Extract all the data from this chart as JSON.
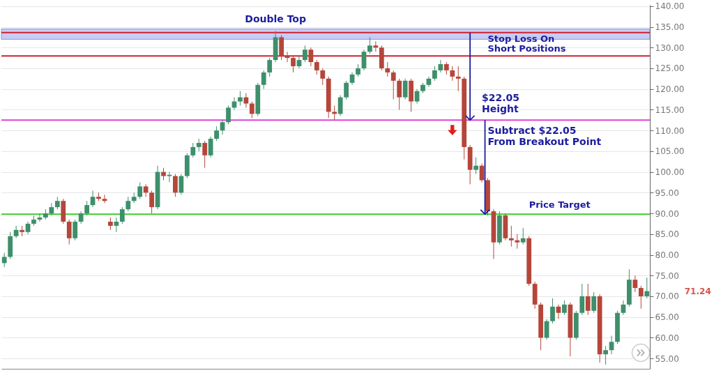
{
  "chart_data": {
    "type": "candlestick",
    "categories": [
      null,
      null,
      null,
      null,
      null,
      null,
      null,
      null,
      null,
      null,
      null,
      null,
      null,
      null,
      null,
      null,
      null,
      null,
      null,
      null,
      null,
      null,
      null,
      null,
      null,
      null,
      null,
      null,
      null,
      null,
      null,
      null,
      null,
      null,
      null,
      null,
      null,
      null,
      null,
      null,
      null,
      null,
      null,
      null,
      null,
      null,
      null,
      null,
      null,
      null,
      null,
      null,
      null,
      null,
      null,
      null,
      null,
      null,
      null,
      null,
      null,
      null,
      null,
      null,
      null,
      null,
      null,
      null,
      null,
      null,
      null,
      null,
      null,
      null,
      null,
      null,
      null,
      null,
      null,
      null,
      null,
      null,
      null,
      null,
      null,
      null,
      null,
      null,
      null,
      null,
      null,
      null,
      null,
      null,
      null,
      null,
      null,
      null,
      null,
      null,
      null,
      null,
      null,
      null,
      null,
      null,
      null,
      null,
      null,
      null
    ],
    "ohlc": [
      [
        78,
        80.5,
        77,
        79.5
      ],
      [
        79.5,
        85.5,
        79,
        84.5
      ],
      [
        84.5,
        87,
        84,
        86
      ],
      [
        86,
        87,
        84.5,
        85.5
      ],
      [
        85.5,
        88,
        85,
        87.5
      ],
      [
        87.5,
        89.5,
        87,
        88.5
      ],
      [
        88.5,
        90,
        88,
        89
      ],
      [
        89,
        91,
        88.5,
        90
      ],
      [
        90,
        92.5,
        89.5,
        91.5
      ],
      [
        91.5,
        94,
        91,
        93
      ],
      [
        93,
        93.5,
        87.5,
        88
      ],
      [
        88,
        88.5,
        82.5,
        84
      ],
      [
        84,
        88.5,
        83.5,
        88
      ],
      [
        88,
        90.5,
        87.5,
        90
      ],
      [
        90,
        93,
        89.5,
        92
      ],
      [
        92,
        95.5,
        91.5,
        94
      ],
      [
        94,
        95,
        93,
        93.5
      ],
      [
        93.5,
        94.5,
        92.5,
        93
      ],
      [
        88,
        89,
        86,
        87
      ],
      [
        87,
        89,
        85.5,
        88
      ],
      [
        88,
        91.5,
        87.5,
        91
      ],
      [
        91,
        94,
        90.5,
        93
      ],
      [
        93,
        95,
        92.5,
        94
      ],
      [
        94,
        97.5,
        93.5,
        96.5
      ],
      [
        96.5,
        97,
        94,
        95
      ],
      [
        95,
        95.5,
        90,
        91.5
      ],
      [
        91.5,
        101.5,
        91,
        100
      ],
      [
        100,
        101,
        98,
        99
      ],
      [
        99,
        100,
        97.5,
        99.3
      ],
      [
        99,
        99.5,
        94,
        95
      ],
      [
        95,
        99.5,
        94.5,
        99
      ],
      [
        99,
        104.5,
        98.5,
        104
      ],
      [
        104,
        107,
        103.5,
        106
      ],
      [
        106,
        108,
        105,
        107
      ],
      [
        107,
        107.5,
        101,
        104
      ],
      [
        104,
        108.5,
        103.5,
        108
      ],
      [
        108,
        111,
        107.5,
        110
      ],
      [
        110,
        112.5,
        109,
        112
      ],
      [
        112,
        116,
        111.5,
        115.5
      ],
      [
        115.5,
        118,
        115,
        117
      ],
      [
        117,
        119.5,
        116,
        118
      ],
      [
        118,
        119,
        115.5,
        116.5
      ],
      [
        116.5,
        117,
        113,
        114
      ],
      [
        114,
        121.5,
        113.5,
        121
      ],
      [
        121,
        124.5,
        120,
        124
      ],
      [
        124,
        127.5,
        123,
        127
      ],
      [
        127,
        134,
        126.5,
        132.5
      ],
      [
        132.5,
        133,
        127,
        128
      ],
      [
        128,
        129,
        126.5,
        127.5
      ],
      [
        127.5,
        128,
        124,
        125.5
      ],
      [
        125.5,
        128,
        125,
        127
      ],
      [
        127,
        130.5,
        126.5,
        129.5
      ],
      [
        129.5,
        130,
        125.5,
        126.5
      ],
      [
        126.5,
        127,
        123.5,
        124.5
      ],
      [
        124.5,
        125,
        121,
        122.5
      ],
      [
        122.5,
        123,
        113,
        114.5
      ],
      [
        114.5,
        116,
        112.5,
        114
      ],
      [
        114,
        118.5,
        113.5,
        118
      ],
      [
        118,
        122,
        117.5,
        121.5
      ],
      [
        121.5,
        124,
        121,
        123.5
      ],
      [
        123.5,
        126,
        123,
        125
      ],
      [
        125,
        129.5,
        124.5,
        129
      ],
      [
        129,
        132.5,
        128.5,
        130.5
      ],
      [
        130.5,
        131.5,
        129,
        130
      ],
      [
        130,
        130.5,
        124.5,
        125
      ],
      [
        125,
        126.5,
        123,
        124
      ],
      [
        124,
        124.5,
        117.5,
        122
      ],
      [
        122,
        122.5,
        115,
        118
      ],
      [
        118,
        122.5,
        117.5,
        122
      ],
      [
        122,
        122.5,
        114.5,
        117
      ],
      [
        117,
        120,
        116.5,
        119.5
      ],
      [
        119.5,
        121.5,
        119,
        121
      ],
      [
        121,
        123,
        120.5,
        122.5
      ],
      [
        122.5,
        125.5,
        122,
        124.5
      ],
      [
        124.5,
        127,
        124,
        126
      ],
      [
        126,
        126.5,
        123.5,
        124.5
      ],
      [
        124.5,
        125.5,
        122,
        123
      ],
      [
        123,
        125.5,
        119.5,
        122.5
      ],
      [
        122.5,
        123,
        103,
        106
      ],
      [
        106,
        106.5,
        97,
        100.5
      ],
      [
        100.5,
        103.5,
        99.5,
        101.5
      ],
      [
        101.5,
        102,
        97.5,
        98
      ],
      [
        98,
        98.5,
        89.5,
        90.5
      ],
      [
        90.5,
        91,
        79,
        83
      ],
      [
        83,
        90.5,
        82.5,
        89.5
      ],
      [
        89.5,
        90,
        83.5,
        84
      ],
      [
        84,
        87,
        82,
        83.5
      ],
      [
        83.5,
        85,
        81.5,
        83
      ],
      [
        83,
        86.5,
        82.5,
        84
      ],
      [
        84,
        84.5,
        72.5,
        73
      ],
      [
        73,
        73.5,
        67,
        68
      ],
      [
        68,
        68.5,
        57,
        60
      ],
      [
        60,
        64.5,
        59.5,
        64
      ],
      [
        64,
        69.5,
        63.5,
        67.5
      ],
      [
        67.5,
        68,
        64.5,
        66
      ],
      [
        66,
        69,
        65.5,
        68
      ],
      [
        68,
        68.5,
        55.5,
        60
      ],
      [
        60,
        66.5,
        59.5,
        66
      ],
      [
        66,
        73,
        65.5,
        70
      ],
      [
        70,
        73,
        65.5,
        66.5
      ],
      [
        66.5,
        71,
        66,
        70
      ],
      [
        70,
        70.5,
        54,
        56
      ],
      [
        56,
        58,
        53.5,
        57
      ],
      [
        57,
        60.5,
        56,
        59
      ],
      [
        59,
        66.5,
        58.5,
        66
      ],
      [
        66,
        69,
        65.5,
        68
      ],
      [
        68,
        76.5,
        67.5,
        74
      ],
      [
        74,
        75,
        71,
        72
      ],
      [
        72,
        72.5,
        67,
        70
      ],
      [
        70,
        74.5,
        69.5,
        71.24
      ]
    ],
    "colors": [
      "#3e8f6b",
      "#3e8f6b",
      "#3e8f6b",
      "#b5463a",
      "#3e8f6b",
      "#3e8f6b",
      "#3e8f6b",
      "#3e8f6b",
      "#3e8f6b",
      "#3e8f6b",
      "#b5463a",
      "#b5463a",
      "#3e8f6b",
      "#3e8f6b",
      "#3e8f6b",
      "#3e8f6b",
      "#b5463a",
      "#b5463a",
      "#b5463a",
      "#3e8f6b",
      "#3e8f6b",
      "#3e8f6b",
      "#3e8f6b",
      "#3e8f6b",
      "#b5463a",
      "#b5463a",
      "#3e8f6b",
      "#b5463a",
      "#3e8f6b",
      "#b5463a",
      "#3e8f6b",
      "#3e8f6b",
      "#3e8f6b",
      "#3e8f6b",
      "#b5463a",
      "#3e8f6b",
      "#3e8f6b",
      "#3e8f6b",
      "#3e8f6b",
      "#3e8f6b",
      "#3e8f6b",
      "#b5463a",
      "#b5463a",
      "#3e8f6b",
      "#3e8f6b",
      "#3e8f6b",
      "#3e8f6b",
      "#b5463a",
      "#b5463a",
      "#b5463a",
      "#3e8f6b",
      "#3e8f6b",
      "#b5463a",
      "#b5463a",
      "#b5463a",
      "#b5463a",
      "#b5463a",
      "#3e8f6b",
      "#3e8f6b",
      "#3e8f6b",
      "#3e8f6b",
      "#3e8f6b",
      "#3e8f6b",
      "#b5463a",
      "#b5463a",
      "#b5463a",
      "#b5463a",
      "#b5463a",
      "#3e8f6b",
      "#b5463a",
      "#3e8f6b",
      "#3e8f6b",
      "#3e8f6b",
      "#3e8f6b",
      "#3e8f6b",
      "#b5463a",
      "#b5463a",
      "#b5463a",
      "#b5463a",
      "#b5463a",
      "#3e8f6b",
      "#b5463a",
      "#b5463a",
      "#b5463a",
      "#3e8f6b",
      "#b5463a",
      "#b5463a",
      "#b5463a",
      "#3e8f6b",
      "#b5463a",
      "#b5463a",
      "#b5463a",
      "#3e8f6b",
      "#3e8f6b",
      "#b5463a",
      "#3e8f6b",
      "#b5463a",
      "#3e8f6b",
      "#3e8f6b",
      "#b5463a",
      "#3e8f6b",
      "#b5463a",
      "#3e8f6b",
      "#3e8f6b",
      "#3e8f6b",
      "#3e8f6b",
      "#3e8f6b",
      "#b5463a",
      "#b5463a",
      "#3e8f6b"
    ],
    "ylim": [
      52.5,
      140.3
    ],
    "yticks": [
      {
        "value": 55,
        "label": "55.00"
      },
      {
        "value": 60,
        "label": "60.00"
      },
      {
        "value": 65,
        "label": "65.00"
      },
      {
        "value": 70,
        "label": "70.00"
      },
      {
        "value": 75,
        "label": "75.00"
      },
      {
        "value": 80,
        "label": "80.00"
      },
      {
        "value": 85,
        "label": "85.00"
      },
      {
        "value": 90,
        "label": "90.00"
      },
      {
        "value": 95,
        "label": "95.00"
      },
      {
        "value": 100,
        "label": "100.00"
      },
      {
        "value": 105,
        "label": "105.00"
      },
      {
        "value": 110,
        "label": "110.00"
      },
      {
        "value": 115,
        "label": "115.00"
      },
      {
        "value": 120,
        "label": "120.00"
      },
      {
        "value": 125,
        "label": "125.00"
      },
      {
        "value": 130,
        "label": "130.00"
      },
      {
        "value": 135,
        "label": "135.00"
      },
      {
        "value": 140,
        "label": "140.00"
      }
    ],
    "grid": "y",
    "tick_labels": "y",
    "bands": [
      {
        "axis": "y",
        "from": 132,
        "to": 134.5,
        "label": "Double Top",
        "color": "#b4bcf0"
      }
    ],
    "ref_lines": [
      {
        "axis": "y",
        "value": 133.6,
        "label": "Stop Loss On\nShort Positions",
        "color": "#d0202e"
      },
      {
        "axis": "y",
        "value": 128,
        "label": null,
        "color": "#d0202e"
      },
      {
        "axis": "y",
        "value": 112.5,
        "label": null,
        "color": "#e040d8"
      },
      {
        "axis": "y",
        "value": 89.8,
        "label": "Price Target",
        "color": "#44cc33"
      }
    ],
    "annotations": [
      "$22.05\nHeight",
      "Subtract $22.05\nFrom Breakout Point",
      "71.24"
    ]
  }
}
